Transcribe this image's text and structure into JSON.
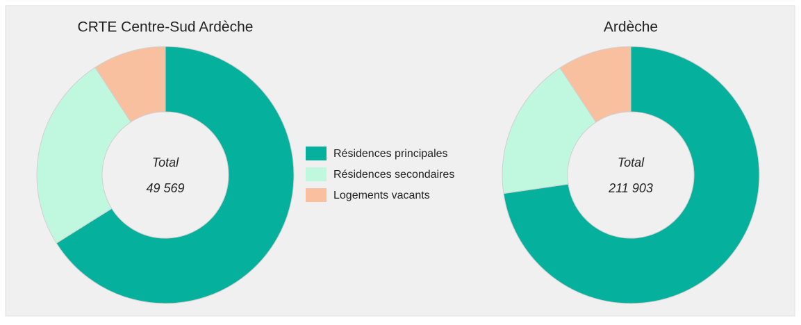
{
  "chart_data": [
    {
      "type": "pie",
      "title": "CRTE Centre-Sud Ardèche",
      "categories": [
        "Résidences principales",
        "Résidences secondaires",
        "Logements vacants"
      ],
      "colors": [
        "#05b09c",
        "#bff7df",
        "#f8c09e"
      ],
      "values": [
        32765,
        12244,
        4560
      ],
      "center_text": "Total",
      "total": 49569,
      "total_label": "49 569"
    },
    {
      "type": "pie",
      "title": "Ardèche",
      "values": [
        154054,
        38143,
        19706
      ],
      "center_text": "Total",
      "total": 211903,
      "total_label": "211 903"
    }
  ]
}
